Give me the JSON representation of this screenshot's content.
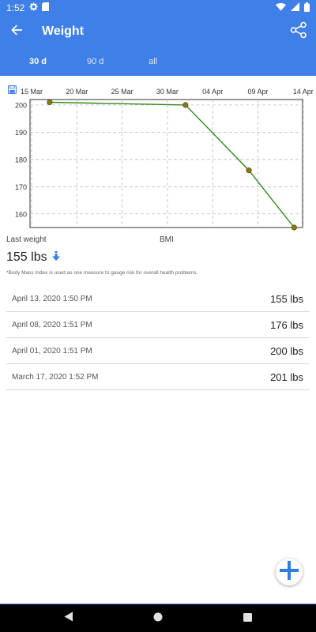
{
  "status_bar": {
    "time": "1:52",
    "icons": [
      "gear-icon",
      "sd-card-icon",
      "wifi-icon",
      "signal-icon",
      "battery-icon"
    ]
  },
  "app_bar": {
    "title": "Weight",
    "icons": [
      "back-arrow-icon",
      "share-icon"
    ]
  },
  "tabs": [
    {
      "label": "30 d",
      "active": true
    },
    {
      "label": "90 d",
      "active": false
    },
    {
      "label": "all",
      "active": false
    }
  ],
  "colors": {
    "primary": "#3f7fe8",
    "line": "#2e8b12",
    "marker": "#8a7a12",
    "fab_plus": "#2f7de1"
  },
  "chart_data": {
    "type": "line",
    "x_ticks": [
      "15 Mar",
      "20 Mar",
      "25 Mar",
      "30 Mar",
      "04 Apr",
      "09 Apr",
      "14 Apr"
    ],
    "y_ticks": [
      "200",
      "190",
      "180",
      "170",
      "160"
    ],
    "ylim": [
      155,
      202
    ],
    "grid": true,
    "series": [
      {
        "x": [
          "2020-03-17",
          "2020-04-01",
          "2020-04-08",
          "2020-04-13"
        ],
        "values": [
          201,
          200,
          176,
          155
        ]
      }
    ]
  },
  "summary": {
    "last_weight_label": "Last weight",
    "bmi_label": "BMI",
    "last_weight_value": "155 lbs",
    "trend_icon": "down-arrow-icon",
    "footnote": "*Body Mass Index is used as one measure to gauge risk for overall health problems."
  },
  "entries": [
    {
      "date": "April 13, 2020 1:50 PM",
      "weight": "155 lbs"
    },
    {
      "date": "April 08, 2020 1:51 PM",
      "weight": "176 lbs"
    },
    {
      "date": "April 01, 2020 1:51 PM",
      "weight": "200 lbs"
    },
    {
      "date": "March 17, 2020 1:52 PM",
      "weight": "201 lbs"
    }
  ],
  "fab": {
    "icon": "plus-icon"
  },
  "nav": {
    "icons": [
      "nav-back-icon",
      "nav-home-icon",
      "nav-recents-icon"
    ]
  }
}
